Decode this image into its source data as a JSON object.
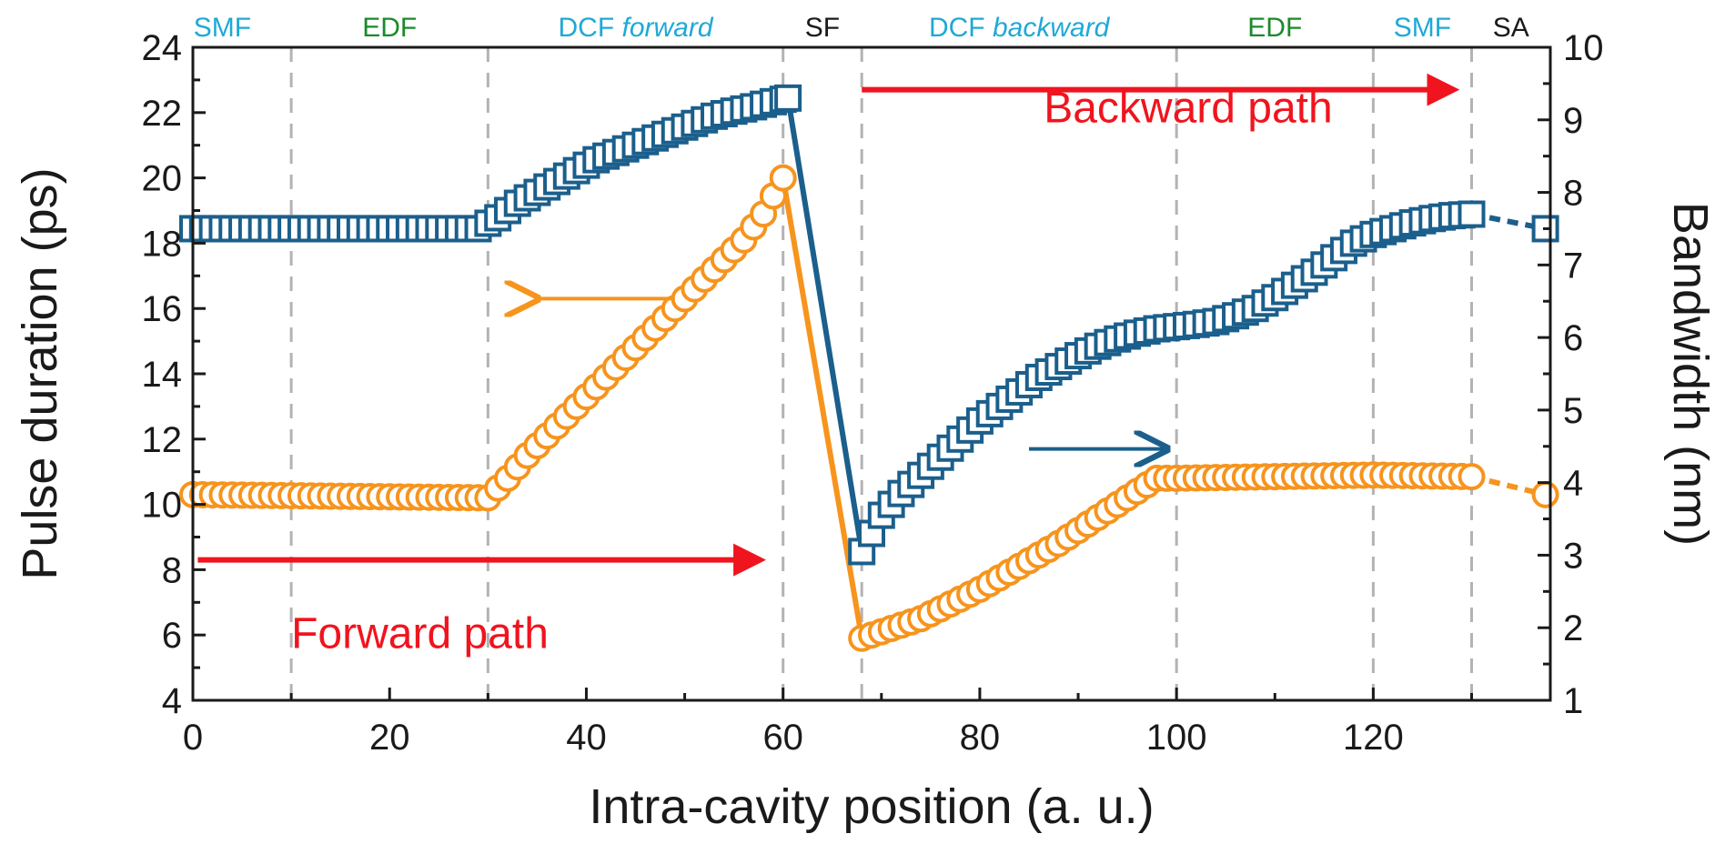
{
  "chart_data": {
    "type": "line",
    "xlabel": "Intra-cavity position (a. u.)",
    "ylabel_left": "Pulse duration (ps)",
    "ylabel_right": "Bandwidth (nm)",
    "xlim": [
      0,
      138
    ],
    "ylim_left": [
      4,
      24
    ],
    "ylim_right": [
      1,
      10
    ],
    "x_ticks": [
      0,
      20,
      40,
      60,
      80,
      100,
      120
    ],
    "y_ticks_left": [
      4,
      6,
      8,
      10,
      12,
      14,
      16,
      18,
      20,
      22,
      24
    ],
    "y_ticks_right": [
      1,
      2,
      3,
      4,
      5,
      6,
      7,
      8,
      9,
      10
    ],
    "grid": "vertical dashed section dividers",
    "section_dividers": [
      10,
      30,
      60,
      68,
      100,
      120,
      130
    ],
    "sections": [
      {
        "label": "SMF",
        "italic": "",
        "x": 3,
        "color": "#1fa9d6"
      },
      {
        "label": "EDF",
        "italic": "",
        "x": 20,
        "color": "#1b8a2a"
      },
      {
        "label": "DCF ",
        "italic": "forward",
        "x": 45,
        "color": "#1fa9d6"
      },
      {
        "label": "SF",
        "italic": "",
        "x": 64,
        "color": "#1a1a1a"
      },
      {
        "label": "DCF ",
        "italic": "backward",
        "x": 84,
        "color": "#1fa9d6"
      },
      {
        "label": "EDF",
        "italic": "",
        "x": 110,
        "color": "#1b8a2a"
      },
      {
        "label": "SMF",
        "italic": "",
        "x": 125,
        "color": "#1fa9d6"
      },
      {
        "label": "SA",
        "italic": "",
        "x": 134,
        "color": "#1a1a1a"
      }
    ],
    "annotations": {
      "forward": {
        "text": "Forward path",
        "arrow_from": [
          0.5,
          8.3
        ],
        "arrow_to": [
          60.5,
          8.3
        ],
        "text_at": [
          10,
          5.6
        ]
      },
      "backward": {
        "text": "Backward path",
        "arrow_from": [
          68,
          22.7
        ],
        "arrow_to": [
          131,
          22.7
        ],
        "text_at": [
          86.5,
          21.7
        ]
      },
      "left_axis_arrow": {
        "from": [
          49,
          16.3
        ],
        "to": [
          35,
          16.3
        ],
        "color": "#f7941d"
      },
      "right_axis_arrow": {
        "from": [
          85,
          11.7
        ],
        "to": [
          99,
          11.7
        ],
        "color": "#1b5f8c"
      }
    },
    "series": [
      {
        "name": "",
        "axis": "left",
        "marker": "circle",
        "color": "#f7941d",
        "points": [
          [
            0,
            10.3
          ],
          [
            30,
            10.2
          ],
          [
            32,
            10.8
          ],
          [
            34,
            11.5
          ],
          [
            36,
            12.1
          ],
          [
            38,
            12.7
          ],
          [
            40,
            13.3
          ],
          [
            42,
            13.9
          ],
          [
            44,
            14.5
          ],
          [
            46,
            15.1
          ],
          [
            48,
            15.7
          ],
          [
            50,
            16.3
          ],
          [
            52,
            16.9
          ],
          [
            54,
            17.5
          ],
          [
            56,
            18.1
          ],
          [
            58,
            18.9
          ],
          [
            60,
            20.0
          ],
          [
            68,
            5.9
          ],
          [
            70,
            6.1
          ],
          [
            72,
            6.3
          ],
          [
            74,
            6.5
          ],
          [
            76,
            6.8
          ],
          [
            78,
            7.1
          ],
          [
            80,
            7.4
          ],
          [
            82,
            7.75
          ],
          [
            84,
            8.1
          ],
          [
            86,
            8.45
          ],
          [
            88,
            8.8
          ],
          [
            90,
            9.2
          ],
          [
            92,
            9.6
          ],
          [
            94,
            10.0
          ],
          [
            96,
            10.4
          ],
          [
            98,
            10.8
          ],
          [
            100,
            10.8
          ],
          [
            110,
            10.85
          ],
          [
            120,
            10.9
          ],
          [
            130,
            10.85
          ]
        ],
        "extra_dashed": [
          [
            130,
            10.85
          ],
          [
            137.5,
            10.3
          ]
        ]
      },
      {
        "name": "",
        "axis": "right",
        "marker": "square",
        "color": "#1b5f8c",
        "points": [
          [
            0,
            7.5
          ],
          [
            29,
            7.5
          ],
          [
            31,
            7.65
          ],
          [
            33,
            7.85
          ],
          [
            35,
            8.0
          ],
          [
            37,
            8.15
          ],
          [
            39,
            8.3
          ],
          [
            41,
            8.45
          ],
          [
            43,
            8.55
          ],
          [
            45,
            8.65
          ],
          [
            47,
            8.75
          ],
          [
            49,
            8.85
          ],
          [
            51,
            8.95
          ],
          [
            53,
            9.05
          ],
          [
            55,
            9.12
          ],
          [
            57,
            9.18
          ],
          [
            59,
            9.25
          ],
          [
            60.5,
            9.3
          ],
          [
            68,
            3.05
          ],
          [
            69,
            3.3
          ],
          [
            70,
            3.55
          ],
          [
            72,
            3.85
          ],
          [
            74,
            4.1
          ],
          [
            76,
            4.35
          ],
          [
            78,
            4.6
          ],
          [
            80,
            4.85
          ],
          [
            82,
            5.05
          ],
          [
            84,
            5.25
          ],
          [
            86,
            5.45
          ],
          [
            88,
            5.6
          ],
          [
            90,
            5.75
          ],
          [
            92,
            5.88
          ],
          [
            94,
            5.98
          ],
          [
            96,
            6.06
          ],
          [
            98,
            6.12
          ],
          [
            100,
            6.15
          ],
          [
            102,
            6.18
          ],
          [
            104,
            6.22
          ],
          [
            106,
            6.3
          ],
          [
            108,
            6.4
          ],
          [
            110,
            6.55
          ],
          [
            112,
            6.72
          ],
          [
            114,
            6.9
          ],
          [
            116,
            7.1
          ],
          [
            118,
            7.3
          ],
          [
            120,
            7.42
          ],
          [
            122,
            7.5
          ],
          [
            124,
            7.58
          ],
          [
            126,
            7.64
          ],
          [
            128,
            7.68
          ],
          [
            130,
            7.7
          ]
        ],
        "extra_dashed": [
          [
            130,
            7.7
          ],
          [
            137.5,
            7.5
          ]
        ]
      }
    ]
  }
}
